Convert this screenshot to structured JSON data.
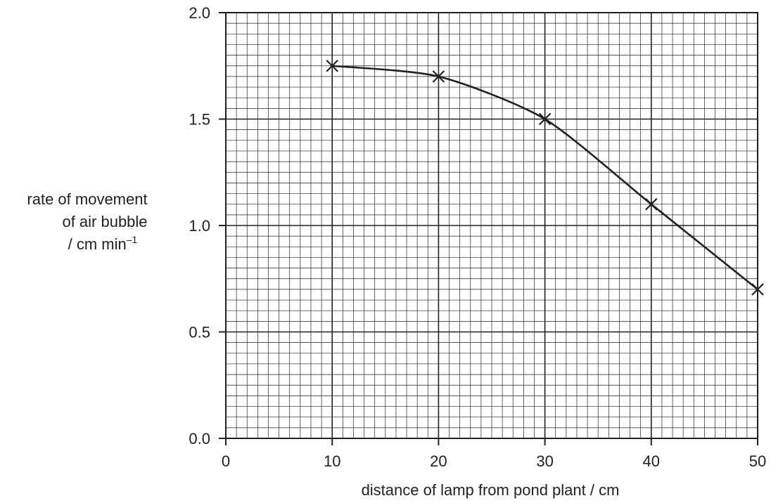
{
  "chart_data": {
    "type": "line",
    "title": "",
    "xlabel": "distance of lamp from pond plant / cm",
    "ylabel_lines": [
      "rate of movement",
      "of air bubble",
      "/ cm min"
    ],
    "ylabel_superscript": "–1",
    "xlim": [
      0,
      50
    ],
    "ylim": [
      0,
      2.0
    ],
    "x_ticks": [
      0,
      10,
      20,
      30,
      40,
      50
    ],
    "x_tick_labels": [
      "0",
      "10",
      "20",
      "30",
      "40",
      "50"
    ],
    "y_ticks": [
      0,
      0.5,
      1.0,
      1.5,
      2.0
    ],
    "y_tick_labels": [
      "0.0",
      "0.5",
      "1.0",
      "1.5",
      "2.0"
    ],
    "grid": true,
    "x_minor_step": 1,
    "y_minor_step": 0.05,
    "series": [
      {
        "x": [
          10,
          20,
          30,
          40,
          50
        ],
        "y": [
          1.75,
          1.7,
          1.5,
          1.1,
          0.7
        ],
        "marker": "cross",
        "color": "#231f20"
      }
    ]
  }
}
